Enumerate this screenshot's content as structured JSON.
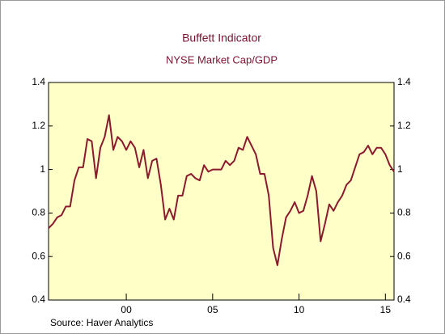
{
  "chart_data": {
    "type": "line",
    "title": "Buffett Indicator",
    "subtitle": "NYSE Market Cap/GDP",
    "source": "Source:   Haver Analytics",
    "x": [
      1995.5,
      1995.75,
      1996,
      1996.25,
      1996.5,
      1996.75,
      1997,
      1997.25,
      1997.5,
      1997.75,
      1998,
      1998.25,
      1998.5,
      1998.75,
      1999,
      1999.25,
      1999.5,
      1999.75,
      2000,
      2000.25,
      2000.5,
      2000.75,
      2001,
      2001.25,
      2001.5,
      2001.75,
      2002,
      2002.25,
      2002.5,
      2002.75,
      2003,
      2003.25,
      2003.5,
      2003.75,
      2004,
      2004.25,
      2004.5,
      2004.75,
      2005,
      2005.25,
      2005.5,
      2005.75,
      2006,
      2006.25,
      2006.5,
      2006.75,
      2007,
      2007.25,
      2007.5,
      2007.75,
      2008,
      2008.25,
      2008.5,
      2008.75,
      2009,
      2009.25,
      2009.5,
      2009.75,
      2010,
      2010.25,
      2010.5,
      2010.75,
      2011,
      2011.25,
      2011.5,
      2011.75,
      2012,
      2012.25,
      2012.5,
      2012.75,
      2013,
      2013.25,
      2013.5,
      2013.75,
      2014,
      2014.25,
      2014.5,
      2014.75,
      2015,
      2015.25,
      2015.5
    ],
    "series": [
      {
        "name": "NYSE Market Cap/GDP",
        "color": "#8b1a2e",
        "values": [
          0.73,
          0.75,
          0.78,
          0.79,
          0.83,
          0.83,
          0.95,
          1.01,
          1.01,
          1.14,
          1.13,
          0.96,
          1.1,
          1.15,
          1.25,
          1.09,
          1.15,
          1.13,
          1.09,
          1.13,
          1.1,
          1.01,
          1.09,
          0.96,
          1.04,
          1.05,
          0.93,
          0.77,
          0.82,
          0.77,
          0.88,
          0.88,
          0.97,
          0.98,
          0.96,
          0.95,
          1.02,
          0.99,
          1.0,
          1.0,
          1.0,
          1.04,
          1.02,
          1.04,
          1.1,
          1.09,
          1.15,
          1.11,
          1.07,
          0.98,
          0.98,
          0.88,
          0.64,
          0.56,
          0.68,
          0.78,
          0.81,
          0.85,
          0.8,
          0.81,
          0.88,
          0.97,
          0.9,
          0.67,
          0.75,
          0.84,
          0.81,
          0.85,
          0.88,
          0.93,
          0.95,
          1.01,
          1.07,
          1.08,
          1.11,
          1.07,
          1.1,
          1.1,
          1.07,
          1.02,
          0.99
        ]
      }
    ],
    "xlim": [
      1995.5,
      2015.5
    ],
    "xticks": [
      {
        "value": 2000,
        "label": "00"
      },
      {
        "value": 2005,
        "label": "05"
      },
      {
        "value": 2010,
        "label": "10"
      },
      {
        "value": 2015,
        "label": "15"
      }
    ],
    "ylim": [
      0.4,
      1.4
    ],
    "yticks": [
      0.4,
      0.6,
      0.8,
      1.0,
      1.2,
      1.4
    ],
    "y2lim": [
      0.4,
      1.4
    ],
    "y2ticks": [
      0.4,
      0.6,
      0.8,
      1.0,
      1.2,
      1.4
    ],
    "background": "#ffffc8"
  }
}
